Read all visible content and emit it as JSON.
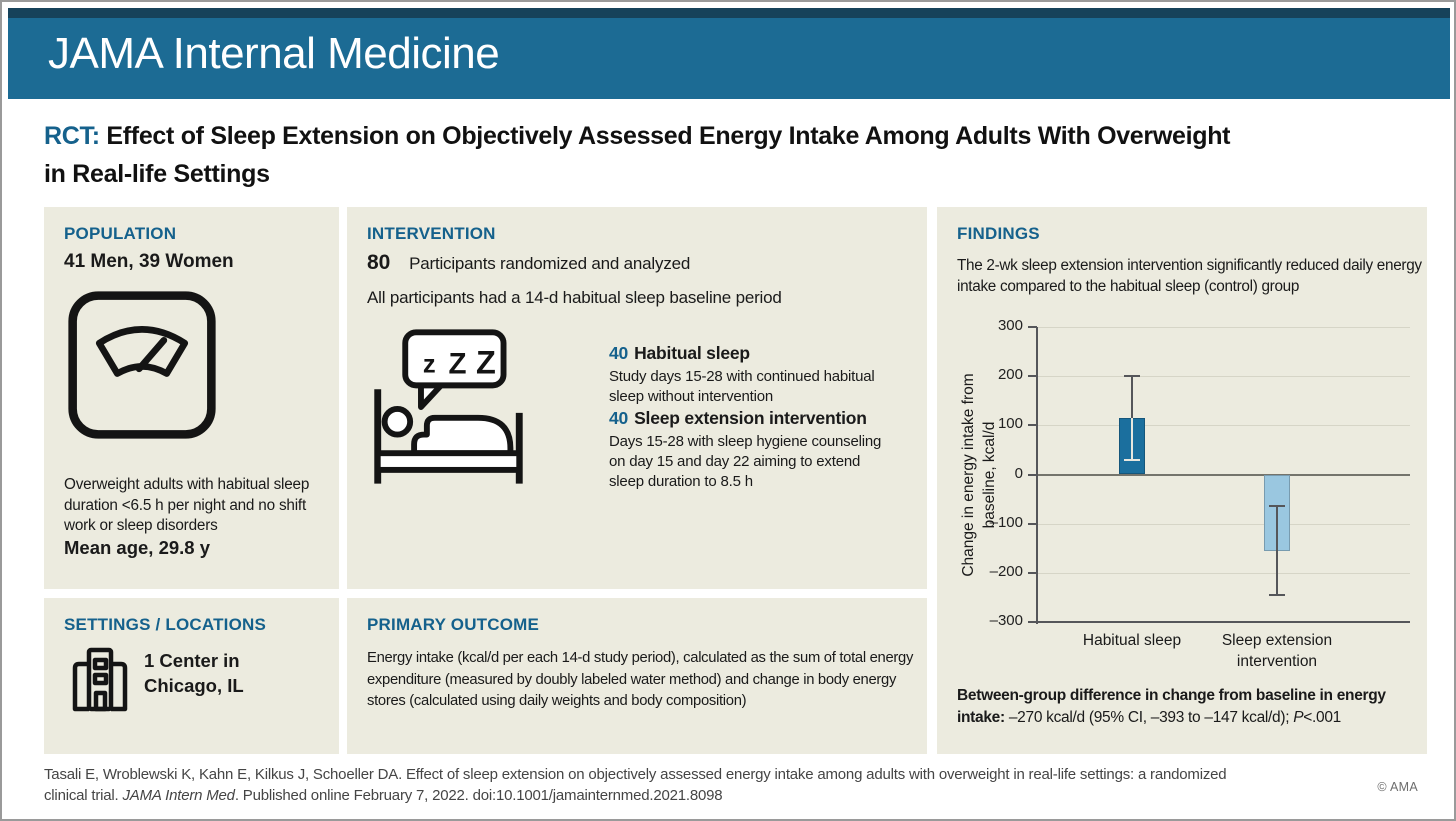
{
  "page": {
    "brand": "JAMA Internal Medicine",
    "title_prefix": "RCT:",
    "title_line1": "Effect of Sleep Extension on Objectively Assessed Energy Intake Among Adults With Overweight",
    "title_line2": "in Real-life Settings",
    "copyright": "© AMA"
  },
  "population": {
    "heading": "POPULATION",
    "count_line": "41 Men, 39 Women",
    "icon": "weight-scale-icon",
    "description": "Overweight adults with habitual sleep duration <6.5 h per night and no shift work or sleep disorders",
    "mean_age": "Mean age, 29.8 y"
  },
  "settings": {
    "heading": "SETTINGS / LOCATIONS",
    "icon": "building-icon",
    "location": "1 Center in\nChicago, IL"
  },
  "intervention": {
    "heading": "INTERVENTION",
    "total_n": "80",
    "total_label": "Participants randomized and analyzed",
    "baseline_note": "All participants had a 14-d habitual sleep baseline period",
    "icon": "sleeping-person-icon",
    "zzz": [
      "z",
      "Z",
      "Z"
    ],
    "groups": [
      {
        "n": "40",
        "name": "Habitual sleep",
        "description": "Study days 15-28 with continued habitual sleep without intervention"
      },
      {
        "n": "40",
        "name": "Sleep extension intervention",
        "description": "Days 15-28 with sleep hygiene counseling on day 15 and day 22 aiming to extend sleep duration to 8.5 h"
      }
    ]
  },
  "primary_outcome": {
    "heading": "PRIMARY OUTCOME",
    "description": "Energy intake (kcal/d per each 14-d study period), calculated as the sum of total energy expenditure (measured by doubly labeled water method) and change in body energy stores (calculated using daily weights and body composition)"
  },
  "findings": {
    "heading": "FINDINGS",
    "summary": "The 2-wk sleep extension intervention significantly reduced daily energy intake compared to the habitual sleep (control) group",
    "stat_label": "Between-group difference in change from baseline in energy intake:",
    "stat_value": " –270 kcal/d (95% CI, –393 to –147 kcal/d); ",
    "stat_p_symbol": "P",
    "stat_p_value": "<.001"
  },
  "chart_data": {
    "type": "bar",
    "title": "",
    "categories": [
      "Habitual sleep",
      "Sleep extension\nintervention"
    ],
    "values": [
      115,
      -155
    ],
    "error_bars": [
      [
        30,
        200
      ],
      [
        -245,
        -65
      ]
    ],
    "bar_colors": [
      "#1b6f9e",
      "#9ac7e0"
    ],
    "xlabel": "",
    "ylabel": "Change in energy intake from\nbaseline, kcal/d",
    "ylim": [
      -300,
      300
    ],
    "yticks": [
      300,
      200,
      100,
      0,
      -100,
      -200,
      -300
    ],
    "grid": true,
    "legend": null
  },
  "citation": {
    "line1": "Tasali E, Wroblewski K, Kahn E, Kilkus J, Schoeller DA. Effect of sleep extension on objectively assessed energy intake among adults with overweight in real-life settings: a randomized",
    "line2_pre": "clinical trial. ",
    "line2_journal": "JAMA Intern Med",
    "line2_post": ". Published online February 7, 2022. doi:10.1001/jamainternmed.2021.8098"
  }
}
